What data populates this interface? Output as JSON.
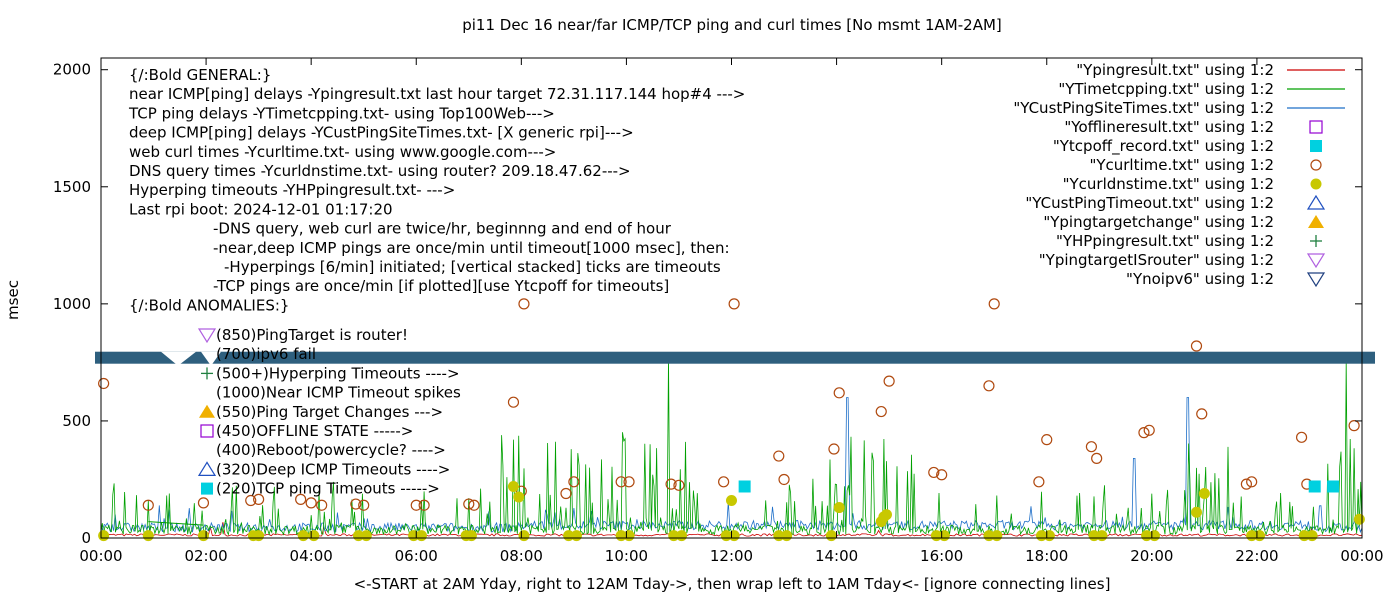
{
  "chart_data": {
    "type": "line",
    "title": "pi11 Dec 16  near/far ICMP/TCP ping and curl times [No msmt 1AM-2AM]",
    "xlabel": "<-START at 2AM Yday, right to 12AM Tday->, then wrap left to 1AM Tday<- [ignore connecting lines]",
    "ylabel": "msec",
    "xlim": [
      0,
      24
    ],
    "ylim": [
      0,
      2050
    ],
    "x_ticks": [
      "00:00",
      "02:00",
      "04:00",
      "06:00",
      "08:00",
      "10:00",
      "12:00",
      "14:00",
      "16:00",
      "18:00",
      "20:00",
      "22:00",
      "00:00"
    ],
    "y_ticks": [
      "0",
      "500",
      "1000",
      "1500",
      "2000"
    ],
    "grid": false,
    "legend_position": "top-right",
    "legend": [
      {
        "label": "\"Ypingresult.txt\" using 1:2",
        "marker": "line",
        "color": "#cc0000"
      },
      {
        "label": "\"YTimetcpping.txt\" using 1:2",
        "marker": "line",
        "color": "#00a000"
      },
      {
        "label": "\"YCustPingSiteTimes.txt\" using 1:2",
        "marker": "line",
        "color": "#1e6fc8"
      },
      {
        "label": "\"Yofflineresult.txt\" using 1:2",
        "marker": "open-square",
        "color": "#9400d3"
      },
      {
        "label": "\"Ytcpoff_record.txt\" using 1:2",
        "marker": "filled-square",
        "color": "#00d0e0"
      },
      {
        "label": "\"Ycurltime.txt\" using 1:2",
        "marker": "open-circle",
        "color": "#b04a10"
      },
      {
        "label": "\"Ycurldnstime.txt\" using 1:2",
        "marker": "filled-circle",
        "color": "#c8c800"
      },
      {
        "label": "\"YCustPingTimeout.txt\" using 1:2",
        "marker": "open-triangle",
        "color": "#2050c0"
      },
      {
        "label": "\"Ypingtargetchange\" using 1:2",
        "marker": "filled-triangle",
        "color": "#f0b000"
      },
      {
        "label": "\"YHPpingresult.txt\" using 1:2",
        "marker": "plus",
        "color": "#208040"
      },
      {
        "label": "\"YpingtargetISrouter\" using 1:2",
        "marker": "open-down-triangle",
        "color": "#b060e0"
      },
      {
        "label": "\"Ynoipv6\" using 1:2",
        "marker": "open-down-triangle",
        "color": "#204080"
      }
    ],
    "notes": [
      "{/:Bold GENERAL:}",
      "near ICMP[ping] delays -Ypingresult.txt last hour target 72.31.117.144 hop#4 --->",
      "TCP ping delays -YTimetcpping.txt- using Top100Web--->",
      "deep ICMP[ping] delays -YCustPingSiteTimes.txt- [X generic rpi]--->",
      "web curl times -Ycurltime.txt- using www.google.com--->",
      "DNS query times -Ycurldnstime.txt- using router? 209.18.47.62--->",
      "Hyperping timeouts -YHPpingresult.txt- --->",
      "Last rpi boot: 2024-12-01 01:17:20",
      "-DNS query, web curl are twice/hr, beginnng and end of hour",
      "-near,deep ICMP pings are once/min until timeout[1000 msec], then:",
      "-Hyperpings [6/min] initiated; [vertical stacked] ticks are timeouts",
      "-TCP pings are once/min [if plotted][use Ytcpoff for timeouts]",
      "{/:Bold ANOMALIES:}"
    ],
    "anomalies": [
      {
        "marker": "open-down-triangle",
        "color": "#b060e0",
        "text": "(850)PingTarget is router!"
      },
      {
        "marker": "none",
        "color": "",
        "text": "(700)ipv6 fail"
      },
      {
        "marker": "plus",
        "color": "#208040",
        "text": "(500+)Hyperping Timeouts ---->"
      },
      {
        "marker": "none",
        "color": "",
        "text": "(1000)Near ICMP Timeout spikes"
      },
      {
        "marker": "filled-triangle",
        "color": "#f0b000",
        "text": "(550)Ping Target Changes --->"
      },
      {
        "marker": "open-square",
        "color": "#9400d3",
        "text": "(450)OFFLINE STATE ----->"
      },
      {
        "marker": "none",
        "color": "",
        "text": "(400)Reboot/powercycle? ---->"
      },
      {
        "marker": "open-triangle",
        "color": "#2050c0",
        "text": "(320)Deep ICMP Timeouts ---->"
      },
      {
        "marker": "filled-square",
        "color": "#00d0e0",
        "text": "(220)TCP ping Timeouts ----->"
      }
    ],
    "band": {
      "y": 770,
      "color": "#2e5f7e"
    },
    "series": [
      {
        "name": "\"Ycurltime.txt\" using 1:2",
        "marker": "open-circle",
        "color": "#b04a10",
        "points": [
          [
            0.05,
            660
          ],
          [
            0.9,
            140
          ],
          [
            1.95,
            150
          ],
          [
            2.85,
            160
          ],
          [
            3.0,
            165
          ],
          [
            3.8,
            165
          ],
          [
            4.0,
            150
          ],
          [
            4.2,
            140
          ],
          [
            4.85,
            145
          ],
          [
            5.0,
            140
          ],
          [
            6.0,
            140
          ],
          [
            6.15,
            140
          ],
          [
            7.0,
            145
          ],
          [
            7.1,
            140
          ],
          [
            8.05,
            1000
          ],
          [
            7.85,
            580
          ],
          [
            8.0,
            200
          ],
          [
            8.85,
            190
          ],
          [
            9.0,
            240
          ],
          [
            9.9,
            240
          ],
          [
            10.05,
            240
          ],
          [
            10.85,
            230
          ],
          [
            11.0,
            225
          ],
          [
            11.85,
            240
          ],
          [
            12.05,
            1000
          ],
          [
            12.9,
            350
          ],
          [
            13.0,
            250
          ],
          [
            13.95,
            380
          ],
          [
            14.05,
            620
          ],
          [
            14.85,
            540
          ],
          [
            15.0,
            670
          ],
          [
            15.85,
            280
          ],
          [
            16.0,
            270
          ],
          [
            16.9,
            650
          ],
          [
            17.0,
            1000
          ],
          [
            17.85,
            240
          ],
          [
            18.0,
            420
          ],
          [
            18.85,
            390
          ],
          [
            18.95,
            340
          ],
          [
            19.85,
            450
          ],
          [
            19.95,
            460
          ],
          [
            20.85,
            820
          ],
          [
            20.95,
            530
          ],
          [
            21.8,
            230
          ],
          [
            21.9,
            240
          ],
          [
            22.85,
            430
          ],
          [
            22.95,
            230
          ],
          [
            23.85,
            480
          ]
        ]
      },
      {
        "name": "\"Ycurldnstime.txt\" using 1:2",
        "marker": "filled-circle",
        "color": "#c8c800",
        "points": [
          [
            0.05,
            10
          ],
          [
            0.9,
            10
          ],
          [
            1.95,
            10
          ],
          [
            2.9,
            10
          ],
          [
            3.0,
            10
          ],
          [
            3.85,
            10
          ],
          [
            4.05,
            10
          ],
          [
            4.9,
            10
          ],
          [
            5.05,
            10
          ],
          [
            5.95,
            10
          ],
          [
            6.1,
            10
          ],
          [
            6.95,
            10
          ],
          [
            7.05,
            10
          ],
          [
            7.85,
            220
          ],
          [
            7.95,
            175
          ],
          [
            8.05,
            10
          ],
          [
            8.9,
            10
          ],
          [
            9.05,
            10
          ],
          [
            9.9,
            10
          ],
          [
            10.05,
            10
          ],
          [
            10.9,
            10
          ],
          [
            11.05,
            10
          ],
          [
            11.9,
            10
          ],
          [
            12.0,
            160
          ],
          [
            12.05,
            10
          ],
          [
            12.9,
            10
          ],
          [
            13.05,
            10
          ],
          [
            13.9,
            10
          ],
          [
            14.05,
            130
          ],
          [
            14.85,
            70
          ],
          [
            14.9,
            90
          ],
          [
            14.95,
            100
          ],
          [
            15.9,
            10
          ],
          [
            16.05,
            10
          ],
          [
            16.9,
            10
          ],
          [
            17.05,
            10
          ],
          [
            17.9,
            10
          ],
          [
            18.05,
            10
          ],
          [
            18.9,
            10
          ],
          [
            19.05,
            10
          ],
          [
            19.9,
            10
          ],
          [
            20.05,
            10
          ],
          [
            20.85,
            110
          ],
          [
            21.0,
            190
          ],
          [
            21.9,
            10
          ],
          [
            22.05,
            10
          ],
          [
            22.9,
            10
          ],
          [
            23.05,
            10
          ],
          [
            23.95,
            80
          ]
        ]
      },
      {
        "name": "\"Ytcpoff_record.txt\" using 1:2",
        "marker": "filled-square",
        "color": "#00d0e0",
        "points": [
          [
            12.25,
            220
          ],
          [
            23.1,
            220
          ],
          [
            23.45,
            220
          ]
        ]
      }
    ]
  }
}
